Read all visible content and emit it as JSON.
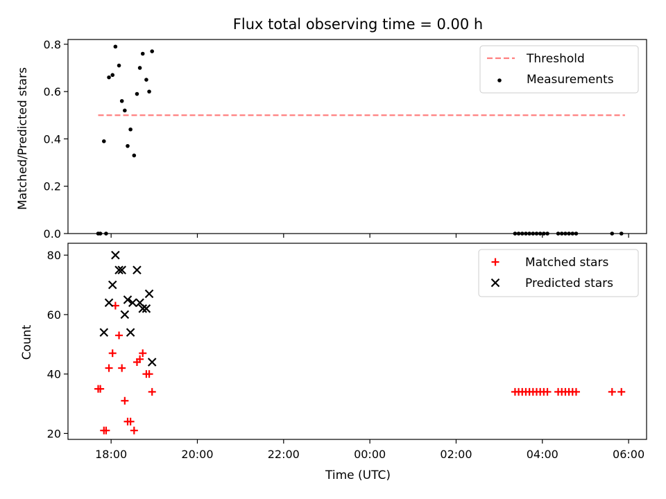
{
  "chart_data": [
    {
      "type": "scatter",
      "title": "Flux total observing time = 0.00 h",
      "ylabel": "Matched/Predicted stars",
      "xlabel": "",
      "xlim": [
        "17:00",
        "06:25"
      ],
      "ylim": [
        0,
        0.82
      ],
      "yticks": [
        0.0,
        0.2,
        0.4,
        0.6,
        0.8
      ],
      "ytick_labels": [
        "0.0",
        "0.2",
        "0.4",
        "0.6",
        "0.8"
      ],
      "legend_position": "top-right",
      "series": [
        {
          "name": "Threshold",
          "style": "dashed-line",
          "color": "#ff7f7f",
          "x": [
            "17:42",
            "05:55"
          ],
          "y": [
            0.5,
            0.5
          ]
        },
        {
          "name": "Measurements",
          "style": "dot",
          "color": "#000000",
          "points": [
            {
              "x": "17:42",
              "y": 0.0
            },
            {
              "x": "17:45",
              "y": 0.0
            },
            {
              "x": "17:50",
              "y": 0.39
            },
            {
              "x": "17:53",
              "y": 0.0
            },
            {
              "x": "17:57",
              "y": 0.66
            },
            {
              "x": "18:02",
              "y": 0.67
            },
            {
              "x": "18:06",
              "y": 0.79
            },
            {
              "x": "18:11",
              "y": 0.71
            },
            {
              "x": "18:15",
              "y": 0.56
            },
            {
              "x": "18:19",
              "y": 0.52
            },
            {
              "x": "18:23",
              "y": 0.37
            },
            {
              "x": "18:27",
              "y": 0.44
            },
            {
              "x": "18:32",
              "y": 0.33
            },
            {
              "x": "18:36",
              "y": 0.59
            },
            {
              "x": "18:40",
              "y": 0.7
            },
            {
              "x": "18:44",
              "y": 0.76
            },
            {
              "x": "18:49",
              "y": 0.65
            },
            {
              "x": "18:53",
              "y": 0.6
            },
            {
              "x": "18:57",
              "y": 0.77
            },
            {
              "x": "03:22",
              "y": 0.0
            },
            {
              "x": "03:27",
              "y": 0.0
            },
            {
              "x": "03:32",
              "y": 0.0
            },
            {
              "x": "03:37",
              "y": 0.0
            },
            {
              "x": "03:42",
              "y": 0.0
            },
            {
              "x": "03:47",
              "y": 0.0
            },
            {
              "x": "03:52",
              "y": 0.0
            },
            {
              "x": "03:57",
              "y": 0.0
            },
            {
              "x": "04:02",
              "y": 0.0
            },
            {
              "x": "04:07",
              "y": 0.0
            },
            {
              "x": "04:22",
              "y": 0.0
            },
            {
              "x": "04:27",
              "y": 0.0
            },
            {
              "x": "04:32",
              "y": 0.0
            },
            {
              "x": "04:37",
              "y": 0.0
            },
            {
              "x": "04:42",
              "y": 0.0
            },
            {
              "x": "04:47",
              "y": 0.0
            },
            {
              "x": "05:37",
              "y": 0.0
            },
            {
              "x": "05:50",
              "y": 0.0
            }
          ]
        }
      ]
    },
    {
      "type": "scatter",
      "title": "",
      "xlabel": "Time (UTC)",
      "ylabel": "Count",
      "xlim": [
        "17:00",
        "06:25"
      ],
      "ylim": [
        18,
        84
      ],
      "yticks": [
        20,
        40,
        60,
        80
      ],
      "ytick_labels": [
        "20",
        "40",
        "60",
        "80"
      ],
      "xticks": [
        "18:00",
        "20:00",
        "22:00",
        "00:00",
        "02:00",
        "04:00",
        "06:00"
      ],
      "legend_position": "top-right",
      "series": [
        {
          "name": "Matched stars",
          "marker": "plus",
          "color": "#ff0000",
          "points": [
            {
              "x": "17:42",
              "y": 35
            },
            {
              "x": "17:45",
              "y": 35
            },
            {
              "x": "17:50",
              "y": 21
            },
            {
              "x": "17:53",
              "y": 21
            },
            {
              "x": "17:57",
              "y": 42
            },
            {
              "x": "18:02",
              "y": 47
            },
            {
              "x": "18:06",
              "y": 63
            },
            {
              "x": "18:11",
              "y": 53
            },
            {
              "x": "18:15",
              "y": 42
            },
            {
              "x": "18:19",
              "y": 31
            },
            {
              "x": "18:23",
              "y": 24
            },
            {
              "x": "18:27",
              "y": 24
            },
            {
              "x": "18:32",
              "y": 21
            },
            {
              "x": "18:36",
              "y": 44
            },
            {
              "x": "18:40",
              "y": 45
            },
            {
              "x": "18:44",
              "y": 47
            },
            {
              "x": "18:49",
              "y": 40
            },
            {
              "x": "18:53",
              "y": 40
            },
            {
              "x": "18:57",
              "y": 34
            },
            {
              "x": "03:22",
              "y": 34
            },
            {
              "x": "03:27",
              "y": 34
            },
            {
              "x": "03:32",
              "y": 34
            },
            {
              "x": "03:37",
              "y": 34
            },
            {
              "x": "03:42",
              "y": 34
            },
            {
              "x": "03:47",
              "y": 34
            },
            {
              "x": "03:52",
              "y": 34
            },
            {
              "x": "03:57",
              "y": 34
            },
            {
              "x": "04:02",
              "y": 34
            },
            {
              "x": "04:07",
              "y": 34
            },
            {
              "x": "04:22",
              "y": 34
            },
            {
              "x": "04:27",
              "y": 34
            },
            {
              "x": "04:32",
              "y": 34
            },
            {
              "x": "04:37",
              "y": 34
            },
            {
              "x": "04:42",
              "y": 34
            },
            {
              "x": "04:47",
              "y": 34
            },
            {
              "x": "05:37",
              "y": 34
            },
            {
              "x": "05:50",
              "y": 34
            }
          ]
        },
        {
          "name": "Predicted stars",
          "marker": "x",
          "color": "#000000",
          "points": [
            {
              "x": "17:50",
              "y": 54
            },
            {
              "x": "17:57",
              "y": 64
            },
            {
              "x": "18:02",
              "y": 70
            },
            {
              "x": "18:06",
              "y": 80
            },
            {
              "x": "18:11",
              "y": 75
            },
            {
              "x": "18:15",
              "y": 75
            },
            {
              "x": "18:19",
              "y": 60
            },
            {
              "x": "18:23",
              "y": 65
            },
            {
              "x": "18:27",
              "y": 54
            },
            {
              "x": "18:30",
              "y": 64
            },
            {
              "x": "18:36",
              "y": 75
            },
            {
              "x": "18:40",
              "y": 64
            },
            {
              "x": "18:44",
              "y": 62
            },
            {
              "x": "18:49",
              "y": 62
            },
            {
              "x": "18:53",
              "y": 67
            },
            {
              "x": "18:57",
              "y": 44
            }
          ]
        }
      ]
    }
  ]
}
